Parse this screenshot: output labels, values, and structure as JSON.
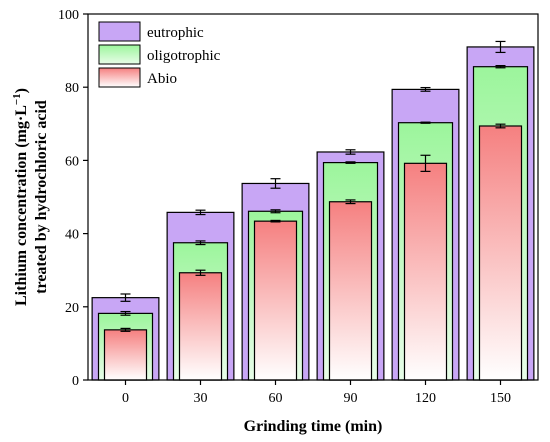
{
  "chart_data": {
    "type": "bar",
    "xlabel": "Grinding time (min)",
    "ylabel_line1": "Lithium concentration (mg·L",
    "ylabel_sup": "−1",
    "ylabel_line1_end": ")",
    "ylabel_line2": "treated by hydrochloric acid",
    "ylim": [
      0,
      100
    ],
    "yticks": [
      0,
      20,
      40,
      60,
      80,
      100
    ],
    "categories": [
      "0",
      "30",
      "60",
      "90",
      "120",
      "150"
    ],
    "legend_position": "top-left",
    "series": [
      {
        "name": "eutrophic",
        "color_top": "#c8a6f5",
        "color_bottom": "#c8a6f5",
        "values": [
          22.5,
          45.8,
          53.7,
          62.3,
          79.4,
          91.0
        ],
        "errors": [
          1.0,
          0.6,
          1.3,
          0.6,
          0.5,
          1.5
        ]
      },
      {
        "name": "oligotrophic",
        "color_top": "#9cf59c",
        "color_bottom": "#e8fde8",
        "values": [
          18.2,
          37.5,
          46.1,
          59.4,
          70.3,
          85.6
        ],
        "errors": [
          0.5,
          0.5,
          0.4,
          0.2,
          0.15,
          0.3
        ]
      },
      {
        "name": "Abio",
        "color_top": "#f58080",
        "color_bottom": "#ffffff",
        "values": [
          13.7,
          29.3,
          43.4,
          48.7,
          59.2,
          69.4
        ],
        "errors": [
          0.4,
          0.7,
          0.2,
          0.5,
          2.2,
          0.5
        ]
      }
    ]
  }
}
